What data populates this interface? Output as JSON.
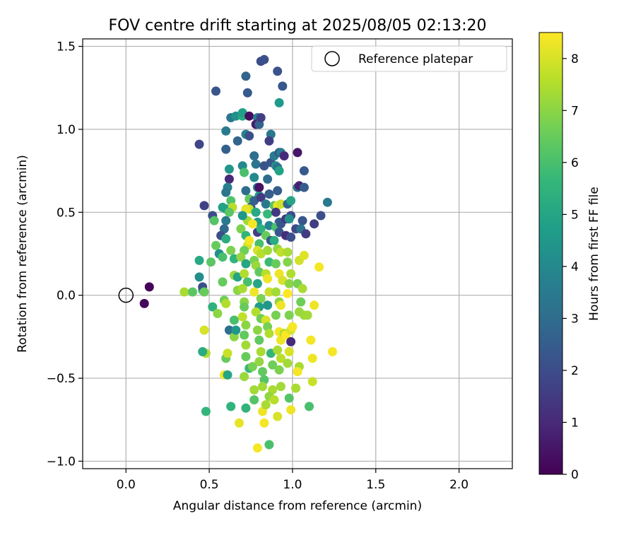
{
  "chart_data": {
    "type": "scatter",
    "title": "FOV centre drift starting at 2025/08/05 02:13:20",
    "xlabel": "Angular distance from reference (arcmin)",
    "ylabel": "Rotation from reference (arcmin)",
    "xlim": [
      -0.26,
      2.32
    ],
    "ylim": [
      -1.045,
      1.545
    ],
    "xticks": [
      0.0,
      0.5,
      1.0,
      1.5,
      2.0
    ],
    "xtick_labels": [
      "0.0",
      "0.5",
      "1.0",
      "1.5",
      "2.0"
    ],
    "yticks": [
      -1.0,
      -0.5,
      0.0,
      0.5,
      1.0,
      1.5
    ],
    "ytick_labels": [
      "−1.0",
      "−0.5",
      "0.0",
      "0.5",
      "1.0",
      "1.5"
    ],
    "grid": true,
    "legend": {
      "position": "top-right",
      "entries": [
        "Reference platepar"
      ]
    },
    "reference_point": {
      "x": 0.0,
      "y": 0.0,
      "marker": "open-circle"
    },
    "colorbar": {
      "label": "Hours from first FF file",
      "range": [
        0,
        8.5
      ],
      "ticks": [
        0,
        1,
        2,
        3,
        4,
        5,
        6,
        7,
        8
      ],
      "tick_labels": [
        "0",
        "1",
        "2",
        "3",
        "4",
        "5",
        "6",
        "7",
        "8"
      ],
      "colormap": "viridis",
      "colors": [
        "#440154",
        "#482878",
        "#3e4989",
        "#31688e",
        "#26828e",
        "#1f9e89",
        "#35b779",
        "#6ece58",
        "#b5de2b",
        "#fde725"
      ]
    },
    "points": [
      [
        0.14,
        0.05,
        0.1
      ],
      [
        0.11,
        -0.05,
        0.2
      ],
      [
        0.35,
        0.02,
        7.4
      ],
      [
        0.4,
        0.02,
        6.3
      ],
      [
        0.44,
        0.21,
        5.1
      ],
      [
        0.44,
        0.11,
        4.2
      ],
      [
        0.46,
        0.03,
        5.8
      ],
      [
        0.46,
        0.05,
        2.1
      ],
      [
        0.47,
        0.02,
        6.5
      ],
      [
        0.47,
        -0.21,
        8.0
      ],
      [
        0.48,
        -0.35,
        7.5
      ],
      [
        0.46,
        -0.34,
        5.2
      ],
      [
        0.48,
        -0.7,
        5.6
      ],
      [
        0.52,
        -0.07,
        5.4
      ],
      [
        0.44,
        0.91,
        1.8
      ],
      [
        0.47,
        0.54,
        1.7
      ],
      [
        0.52,
        0.48,
        2.0
      ],
      [
        0.53,
        0.45,
        6.2
      ],
      [
        0.51,
        0.2,
        6.3
      ],
      [
        0.54,
        0.3,
        6.5
      ],
      [
        0.55,
        -0.11,
        7.0
      ],
      [
        0.58,
        0.08,
        6.5
      ],
      [
        0.59,
        -0.03,
        6.6
      ],
      [
        0.59,
        -0.48,
        8.4
      ],
      [
        0.6,
        -0.38,
        6.5
      ],
      [
        0.61,
        -0.48,
        5.0
      ],
      [
        0.6,
        -0.05,
        7.5
      ],
      [
        0.62,
        -0.21,
        3.1
      ],
      [
        0.61,
        -0.35,
        7.8
      ],
      [
        0.63,
        -0.67,
        5.5
      ],
      [
        0.54,
        1.23,
        2.3
      ],
      [
        0.6,
        0.99,
        3.5
      ],
      [
        0.6,
        0.88,
        2.6
      ],
      [
        0.62,
        0.76,
        4.5
      ],
      [
        0.62,
        0.7,
        1.0
      ],
      [
        0.61,
        0.65,
        3.7
      ],
      [
        0.6,
        0.62,
        3.3
      ],
      [
        0.6,
        0.52,
        4.4
      ],
      [
        0.6,
        0.45,
        3.5
      ],
      [
        0.59,
        0.4,
        2.9
      ],
      [
        0.58,
        0.53,
        4.9
      ],
      [
        0.57,
        0.36,
        2.1
      ],
      [
        0.56,
        0.25,
        4.2
      ],
      [
        0.6,
        0.34,
        5.3
      ],
      [
        0.58,
        0.23,
        6.0
      ],
      [
        0.63,
        0.57,
        6.1
      ],
      [
        0.64,
        0.53,
        7.6
      ],
      [
        0.62,
        0.5,
        6.3
      ],
      [
        0.63,
        0.27,
        6.8
      ],
      [
        0.65,
        0.22,
        5.5
      ],
      [
        0.65,
        0.12,
        7.2
      ],
      [
        0.65,
        -0.15,
        6.0
      ],
      [
        0.65,
        -0.25,
        7.0
      ],
      [
        0.66,
        -0.21,
        4.5
      ],
      [
        0.68,
        -0.77,
        8.2
      ],
      [
        0.72,
        -0.68,
        5.5
      ],
      [
        0.67,
        0.11,
        5.0
      ],
      [
        0.67,
        0.03,
        7.0
      ],
      [
        0.63,
        1.07,
        3.4
      ],
      [
        0.66,
        1.08,
        4.3
      ],
      [
        0.67,
        0.93,
        2.7
      ],
      [
        0.7,
        1.08,
        5.2
      ],
      [
        0.7,
        1.1,
        4.8
      ],
      [
        0.72,
        1.32,
        2.7
      ],
      [
        0.73,
        1.22,
        2.4
      ],
      [
        0.72,
        0.97,
        3.7
      ],
      [
        0.74,
        0.96,
        2.1
      ],
      [
        0.74,
        1.08,
        0.3
      ],
      [
        0.7,
        0.78,
        4.0
      ],
      [
        0.71,
        0.74,
        6.0
      ],
      [
        0.72,
        0.63,
        3.0
      ],
      [
        0.74,
        0.58,
        6.4
      ],
      [
        0.75,
        0.53,
        2.0
      ],
      [
        0.73,
        0.45,
        7.3
      ],
      [
        0.74,
        0.52,
        7.6
      ],
      [
        0.72,
        0.52,
        8.2
      ],
      [
        0.7,
        0.48,
        4.5
      ],
      [
        0.69,
        0.4,
        6.8
      ],
      [
        0.72,
        0.36,
        5.5
      ],
      [
        0.73,
        0.3,
        8.0
      ],
      [
        0.74,
        0.33,
        8.4
      ],
      [
        0.71,
        0.27,
        6.6
      ],
      [
        0.69,
        0.23,
        7.1
      ],
      [
        0.72,
        0.19,
        5.0
      ],
      [
        0.71,
        0.13,
        7.5
      ],
      [
        0.73,
        0.08,
        6.0
      ],
      [
        0.7,
        0.04,
        7.4
      ],
      [
        0.71,
        -0.04,
        7.0
      ],
      [
        0.71,
        -0.07,
        6.5
      ],
      [
        0.7,
        -0.13,
        7.7
      ],
      [
        0.72,
        -0.18,
        7.0
      ],
      [
        0.71,
        -0.24,
        6.4
      ],
      [
        0.72,
        -0.3,
        7.3
      ],
      [
        0.72,
        -0.37,
        6.5
      ],
      [
        0.74,
        -0.44,
        5.7
      ],
      [
        0.71,
        -0.49,
        7.2
      ],
      [
        0.76,
        -0.43,
        6.7
      ],
      [
        0.77,
        -0.57,
        7.3
      ],
      [
        0.77,
        -0.63,
        6.2
      ],
      [
        0.79,
        -0.92,
        8.4
      ],
      [
        0.79,
        1.07,
        3.5
      ],
      [
        0.78,
        1.03,
        0.7
      ],
      [
        0.81,
        1.41,
        2.0
      ],
      [
        0.83,
        1.42,
        2.1
      ],
      [
        0.8,
        1.03,
        2.7
      ],
      [
        0.81,
        1.07,
        1.6
      ],
      [
        0.77,
        0.84,
        3.1
      ],
      [
        0.78,
        0.79,
        3.3
      ],
      [
        0.77,
        0.71,
        4.0
      ],
      [
        0.79,
        0.65,
        3.6
      ],
      [
        0.8,
        0.6,
        4.7
      ],
      [
        0.77,
        0.57,
        2.6
      ],
      [
        0.8,
        0.65,
        0.4
      ],
      [
        0.81,
        0.59,
        1.5
      ],
      [
        0.83,
        0.78,
        2.2
      ],
      [
        0.78,
        0.5,
        5.1
      ],
      [
        0.79,
        0.44,
        4.6
      ],
      [
        0.76,
        0.43,
        8.4
      ],
      [
        0.79,
        0.38,
        1.6
      ],
      [
        0.81,
        0.4,
        5.4
      ],
      [
        0.8,
        0.31,
        6.0
      ],
      [
        0.79,
        0.27,
        8.0
      ],
      [
        0.81,
        0.25,
        7.6
      ],
      [
        0.77,
        0.21,
        6.7
      ],
      [
        0.78,
        0.18,
        7.2
      ],
      [
        0.8,
        0.14,
        6.4
      ],
      [
        0.79,
        0.07,
        5.0
      ],
      [
        0.77,
        0.02,
        8.3
      ],
      [
        0.81,
        -0.02,
        6.8
      ],
      [
        0.8,
        -0.07,
        4.7
      ],
      [
        0.78,
        -0.1,
        7.5
      ],
      [
        0.81,
        -0.14,
        6.6
      ],
      [
        0.79,
        -0.21,
        7.0
      ],
      [
        0.8,
        -0.27,
        6.4
      ],
      [
        0.81,
        -0.34,
        7.4
      ],
      [
        0.8,
        -0.4,
        7.1
      ],
      [
        0.82,
        -0.46,
        6.4
      ],
      [
        0.83,
        -0.51,
        6.2
      ],
      [
        0.82,
        -0.55,
        7.3
      ],
      [
        0.82,
        -0.7,
        8.3
      ],
      [
        0.83,
        -0.77,
        8.4
      ],
      [
        0.84,
        -0.66,
        7.4
      ],
      [
        0.87,
        0.97,
        3.4
      ],
      [
        0.86,
        0.93,
        1.6
      ],
      [
        0.87,
        0.8,
        2.3
      ],
      [
        0.85,
        0.7,
        3.0
      ],
      [
        0.86,
        0.61,
        2.5
      ],
      [
        0.84,
        0.55,
        3.4
      ],
      [
        0.85,
        0.49,
        5.7
      ],
      [
        0.86,
        0.42,
        3.8
      ],
      [
        0.84,
        0.36,
        6.5
      ],
      [
        0.87,
        0.33,
        2.3
      ],
      [
        0.85,
        0.27,
        7.3
      ],
      [
        0.86,
        0.2,
        5.8
      ],
      [
        0.84,
        0.13,
        7.6
      ],
      [
        0.85,
        0.1,
        8.3
      ],
      [
        0.86,
        0.02,
        7.8
      ],
      [
        0.85,
        -0.06,
        4.5
      ],
      [
        0.84,
        -0.15,
        8.0
      ],
      [
        0.85,
        -0.19,
        6.7
      ],
      [
        0.86,
        -0.23,
        7.5
      ],
      [
        0.87,
        -0.35,
        5.6
      ],
      [
        0.88,
        -0.42,
        6.6
      ],
      [
        0.88,
        -0.57,
        7.4
      ],
      [
        0.86,
        -0.61,
        7.1
      ],
      [
        0.86,
        -0.9,
        6.0
      ],
      [
        0.89,
        -0.63,
        7.6
      ],
      [
        0.89,
        0.84,
        3.5
      ],
      [
        0.9,
        0.78,
        4.3
      ],
      [
        0.91,
        0.77,
        3.2
      ],
      [
        0.91,
        1.35,
        2.2
      ],
      [
        0.92,
        1.16,
        4.6
      ],
      [
        0.94,
        1.26,
        2.3
      ],
      [
        0.92,
        0.86,
        2.0
      ],
      [
        0.93,
        0.86,
        3.6
      ],
      [
        0.95,
        0.84,
        1.0
      ],
      [
        0.92,
        0.75,
        4.9
      ],
      [
        0.91,
        0.63,
        2.5
      ],
      [
        0.89,
        0.54,
        6.2
      ],
      [
        0.91,
        0.54,
        8.3
      ],
      [
        0.93,
        0.55,
        7.9
      ],
      [
        0.9,
        0.5,
        1.4
      ],
      [
        0.92,
        0.44,
        2.5
      ],
      [
        0.9,
        0.41,
        6.0
      ],
      [
        0.92,
        0.38,
        2.3
      ],
      [
        0.93,
        0.43,
        2.3
      ],
      [
        0.89,
        0.33,
        5.2
      ],
      [
        0.91,
        0.28,
        7.1
      ],
      [
        0.93,
        0.26,
        7.7
      ],
      [
        0.9,
        0.19,
        6.5
      ],
      [
        0.92,
        0.13,
        8.3
      ],
      [
        0.94,
        0.09,
        8.0
      ],
      [
        0.9,
        0.02,
        7.3
      ],
      [
        0.92,
        -0.04,
        7.0
      ],
      [
        0.93,
        -0.06,
        8.3
      ],
      [
        0.9,
        -0.12,
        6.7
      ],
      [
        0.92,
        -0.22,
        8.4
      ],
      [
        0.93,
        -0.27,
        8.3
      ],
      [
        0.91,
        -0.33,
        7.4
      ],
      [
        0.93,
        -0.38,
        7.6
      ],
      [
        0.92,
        -0.45,
        6.8
      ],
      [
        0.93,
        -0.55,
        7.3
      ],
      [
        0.91,
        -0.73,
        8.0
      ],
      [
        0.95,
        -0.23,
        7.5
      ],
      [
        0.96,
        -0.24,
        8.5
      ],
      [
        0.97,
        0.55,
        2.8
      ],
      [
        0.96,
        0.46,
        1.4
      ],
      [
        0.99,
        0.48,
        2.0
      ],
      [
        0.99,
        0.57,
        5.0
      ],
      [
        0.98,
        0.46,
        4.3
      ],
      [
        0.96,
        0.36,
        1.1
      ],
      [
        0.99,
        0.35,
        2.1
      ],
      [
        0.97,
        0.26,
        7.4
      ],
      [
        0.97,
        0.2,
        6.9
      ],
      [
        0.99,
        0.13,
        7.5
      ],
      [
        0.98,
        0.07,
        7.0
      ],
      [
        0.97,
        0.01,
        8.5
      ],
      [
        0.98,
        -0.12,
        6.8
      ],
      [
        0.99,
        -0.21,
        8.0
      ],
      [
        1.0,
        -0.19,
        8.4
      ],
      [
        0.99,
        -0.28,
        1.0
      ],
      [
        0.98,
        -0.34,
        8.0
      ],
      [
        0.97,
        -0.41,
        7.3
      ],
      [
        0.98,
        -0.62,
        6.2
      ],
      [
        0.99,
        -0.69,
        8.3
      ],
      [
        1.02,
        -0.56,
        7.4
      ],
      [
        1.03,
        0.86,
        0.5
      ],
      [
        1.03,
        0.65,
        3.2
      ],
      [
        1.04,
        0.66,
        0.8
      ],
      [
        1.06,
        0.45,
        2.3
      ],
      [
        1.07,
        0.75,
        2.4
      ],
      [
        1.07,
        0.65,
        2.5
      ],
      [
        1.02,
        0.4,
        1.9
      ],
      [
        1.05,
        0.4,
        3.2
      ],
      [
        1.08,
        0.37,
        1.5
      ],
      [
        1.04,
        0.21,
        7.9
      ],
      [
        1.07,
        0.24,
        8.1
      ],
      [
        1.03,
        0.07,
        6.7
      ],
      [
        1.06,
        0.04,
        7.4
      ],
      [
        1.05,
        -0.04,
        6.6
      ],
      [
        1.04,
        -0.1,
        7.2
      ],
      [
        1.07,
        -0.12,
        7.2
      ],
      [
        1.04,
        -0.43,
        7.4
      ],
      [
        1.03,
        -0.46,
        8.4
      ],
      [
        1.09,
        -0.12,
        7.3
      ],
      [
        1.1,
        -0.67,
        6.0
      ],
      [
        1.11,
        -0.27,
        8.4
      ],
      [
        1.12,
        -0.38,
        8.3
      ],
      [
        1.12,
        -0.52,
        7.8
      ],
      [
        1.13,
        -0.06,
        8.3
      ],
      [
        1.16,
        0.17,
        8.4
      ],
      [
        1.13,
        0.43,
        1.6
      ],
      [
        1.17,
        0.48,
        2.1
      ],
      [
        1.21,
        0.56,
        3.5
      ],
      [
        1.24,
        -0.34,
        8.4
      ]
    ]
  }
}
